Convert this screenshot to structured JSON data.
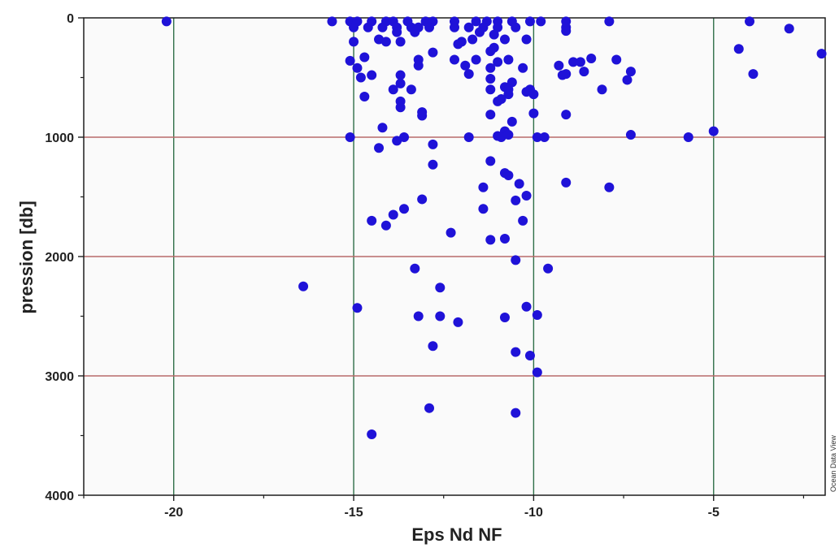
{
  "chart_data": {
    "type": "scatter",
    "xlabel": "Eps Nd NF",
    "ylabel": "pression [db]",
    "xlim": [
      -22.5,
      -1.9
    ],
    "ylim": [
      4000,
      0
    ],
    "y_inverted": true,
    "x_ticks": [
      -20,
      -15,
      -10,
      -5
    ],
    "x_tick_labels": [
      "-20",
      "-15",
      "-10",
      "-5"
    ],
    "y_ticks": [
      0,
      1000,
      2000,
      3000,
      4000
    ],
    "y_tick_labels": [
      "0",
      "1000",
      "2000",
      "3000",
      "4000"
    ],
    "x_minor_ticks": [
      -22.5,
      -17.5,
      -12.5,
      -7.5,
      -2.5
    ],
    "y_minor_ticks": [
      500,
      1500,
      2500,
      3500
    ],
    "grid": true,
    "watermark": "Ocean Data View",
    "colors": {
      "marker": "#1f12d8",
      "plot_bg": "#fafafa",
      "grid": "#2f6f49",
      "hgrid": "#b86a6a"
    },
    "points": [
      [
        -20.2,
        30
      ],
      [
        -15.6,
        30
      ],
      [
        -15.1,
        30
      ],
      [
        -14.9,
        30
      ],
      [
        -14.5,
        30
      ],
      [
        -14.1,
        30
      ],
      [
        -13.9,
        30
      ],
      [
        -13.5,
        30
      ],
      [
        -13.0,
        30
      ],
      [
        -12.8,
        30
      ],
      [
        -12.2,
        30
      ],
      [
        -11.6,
        30
      ],
      [
        -11.3,
        30
      ],
      [
        -11.0,
        30
      ],
      [
        -10.6,
        30
      ],
      [
        -10.1,
        30
      ],
      [
        -9.8,
        30
      ],
      [
        -9.1,
        30
      ],
      [
        -7.9,
        30
      ],
      [
        -4.0,
        30
      ],
      [
        -15.0,
        80
      ],
      [
        -14.6,
        80
      ],
      [
        -14.2,
        80
      ],
      [
        -13.8,
        80
      ],
      [
        -13.4,
        80
      ],
      [
        -13.2,
        80
      ],
      [
        -12.9,
        80
      ],
      [
        -12.2,
        80
      ],
      [
        -11.8,
        80
      ],
      [
        -11.4,
        80
      ],
      [
        -11.0,
        80
      ],
      [
        -10.5,
        80
      ],
      [
        -9.1,
        80
      ],
      [
        -2.9,
        90
      ],
      [
        -13.8,
        120
      ],
      [
        -13.3,
        120
      ],
      [
        -11.5,
        120
      ],
      [
        -11.1,
        140
      ],
      [
        -9.1,
        110
      ],
      [
        -14.3,
        180
      ],
      [
        -14.1,
        200
      ],
      [
        -13.7,
        200
      ],
      [
        -12.0,
        200
      ],
      [
        -11.7,
        180
      ],
      [
        -10.8,
        180
      ],
      [
        -10.2,
        180
      ],
      [
        -15.0,
        200
      ],
      [
        -12.1,
        220
      ],
      [
        -11.1,
        250
      ],
      [
        -4.3,
        260
      ],
      [
        -11.2,
        280
      ],
      [
        -12.8,
        290
      ],
      [
        -2.0,
        300
      ],
      [
        -15.1,
        360
      ],
      [
        -14.7,
        330
      ],
      [
        -13.2,
        350
      ],
      [
        -12.2,
        350
      ],
      [
        -11.6,
        350
      ],
      [
        -11.0,
        370
      ],
      [
        -10.7,
        350
      ],
      [
        -8.9,
        370
      ],
      [
        -8.7,
        370
      ],
      [
        -8.4,
        340
      ],
      [
        -7.7,
        350
      ],
      [
        -14.9,
        420
      ],
      [
        -13.2,
        400
      ],
      [
        -11.9,
        400
      ],
      [
        -11.2,
        420
      ],
      [
        -10.3,
        420
      ],
      [
        -9.3,
        400
      ],
      [
        -8.6,
        450
      ],
      [
        -7.3,
        450
      ],
      [
        -14.5,
        480
      ],
      [
        -13.7,
        480
      ],
      [
        -11.8,
        470
      ],
      [
        -9.1,
        470
      ],
      [
        -3.9,
        470
      ],
      [
        -14.8,
        500
      ],
      [
        -9.2,
        480
      ],
      [
        -11.2,
        510
      ],
      [
        -10.6,
        540
      ],
      [
        -7.4,
        520
      ],
      [
        -13.7,
        550
      ],
      [
        -13.9,
        600
      ],
      [
        -13.4,
        600
      ],
      [
        -11.2,
        600
      ],
      [
        -10.8,
        580
      ],
      [
        -10.7,
        600
      ],
      [
        -10.1,
        600
      ],
      [
        -8.1,
        600
      ],
      [
        -10.2,
        620
      ],
      [
        -10.7,
        640
      ],
      [
        -10.0,
        640
      ],
      [
        -14.7,
        660
      ],
      [
        -11.0,
        700
      ],
      [
        -10.9,
        680
      ],
      [
        -13.7,
        700
      ],
      [
        -13.7,
        750
      ],
      [
        -13.1,
        790
      ],
      [
        -13.1,
        820
      ],
      [
        -11.2,
        810
      ],
      [
        -10.0,
        800
      ],
      [
        -9.1,
        810
      ],
      [
        -10.6,
        870
      ],
      [
        -14.2,
        920
      ],
      [
        -10.8,
        950
      ],
      [
        -11.0,
        990
      ],
      [
        -15.1,
        1000
      ],
      [
        -13.6,
        1000
      ],
      [
        -11.8,
        1000
      ],
      [
        -10.9,
        1000
      ],
      [
        -10.7,
        980
      ],
      [
        -9.9,
        1000
      ],
      [
        -9.7,
        1000
      ],
      [
        -7.3,
        980
      ],
      [
        -5.7,
        1000
      ],
      [
        -5.0,
        950
      ],
      [
        -13.8,
        1030
      ],
      [
        -12.8,
        1060
      ],
      [
        -14.3,
        1090
      ],
      [
        -11.2,
        1200
      ],
      [
        -12.8,
        1230
      ],
      [
        -10.8,
        1300
      ],
      [
        -10.7,
        1320
      ],
      [
        -10.4,
        1390
      ],
      [
        -9.1,
        1380
      ],
      [
        -7.9,
        1420
      ],
      [
        -11.4,
        1420
      ],
      [
        -10.2,
        1490
      ],
      [
        -10.5,
        1530
      ],
      [
        -13.1,
        1520
      ],
      [
        -13.6,
        1600
      ],
      [
        -11.4,
        1600
      ],
      [
        -13.9,
        1650
      ],
      [
        -14.5,
        1700
      ],
      [
        -14.1,
        1740
      ],
      [
        -10.3,
        1700
      ],
      [
        -12.3,
        1800
      ],
      [
        -11.2,
        1860
      ],
      [
        -10.8,
        1850
      ],
      [
        -10.5,
        2030
      ],
      [
        -13.3,
        2100
      ],
      [
        -9.6,
        2100
      ],
      [
        -16.4,
        2250
      ],
      [
        -12.6,
        2260
      ],
      [
        -14.9,
        2430
      ],
      [
        -10.2,
        2420
      ],
      [
        -13.2,
        2500
      ],
      [
        -12.6,
        2500
      ],
      [
        -10.8,
        2510
      ],
      [
        -9.9,
        2490
      ],
      [
        -12.1,
        2550
      ],
      [
        -12.8,
        2750
      ],
      [
        -10.5,
        2800
      ],
      [
        -10.1,
        2830
      ],
      [
        -9.9,
        2970
      ],
      [
        -12.9,
        3270
      ],
      [
        -10.5,
        3310
      ],
      [
        -14.5,
        3490
      ]
    ]
  }
}
